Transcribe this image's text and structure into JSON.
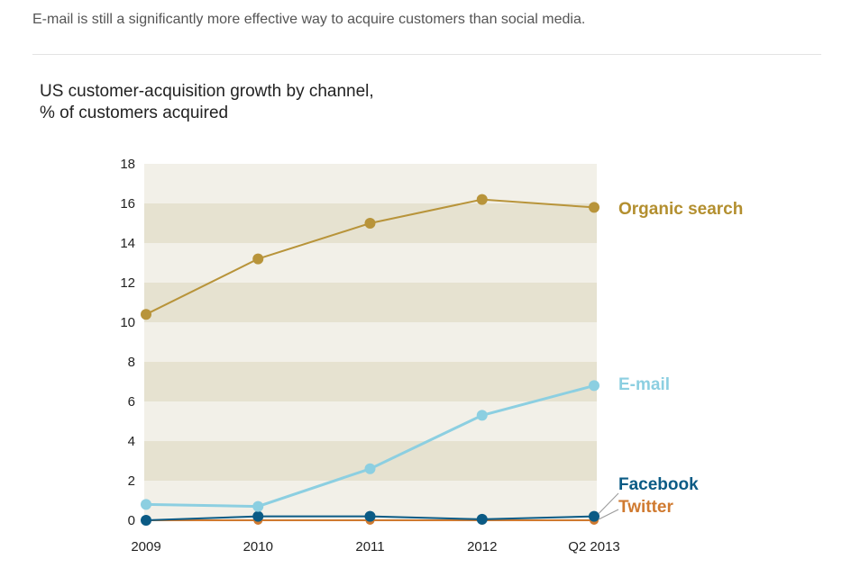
{
  "caption": "E-mail is still a significantly more effective way to acquire customers than social media.",
  "title_line1": "US customer-acquisition growth by channel,",
  "title_line2": "% of customers acquired",
  "chart_data": {
    "type": "line",
    "title": "US customer-acquisition growth by channel, % of customers acquired",
    "categories": [
      "2009",
      "2010",
      "2011",
      "2012",
      "Q2 2013"
    ],
    "ylim": [
      0,
      18
    ],
    "yticks": [
      0,
      2,
      4,
      6,
      8,
      10,
      12,
      14,
      16,
      18
    ],
    "grid": "alternating horizontal bands",
    "legend": "direct labels at right end of lines",
    "series": [
      {
        "name": "Organic search",
        "values": [
          10.4,
          13.2,
          15.0,
          16.2,
          15.8
        ],
        "color": "#b8943a",
        "label_color": "#b38f2f"
      },
      {
        "name": "E-mail",
        "values": [
          0.8,
          0.7,
          2.6,
          5.3,
          6.8
        ],
        "color": "#8ccfe1",
        "label_color": "#8ccfe1"
      },
      {
        "name": "Facebook",
        "values": [
          0.0,
          0.2,
          0.2,
          0.05,
          0.2
        ],
        "color": "#0b5b85",
        "label_color": "#0b5b85"
      },
      {
        "name": "Twitter",
        "values": [
          0.0,
          0.0,
          0.0,
          0.0,
          0.0
        ],
        "color": "#d07a30",
        "label_color": "#d07a30"
      }
    ]
  },
  "colors": {
    "band_light": "#f2f0e8",
    "band_dark": "#e6e2d0",
    "caption_text": "#555555",
    "divider": "#e3e3e3"
  }
}
